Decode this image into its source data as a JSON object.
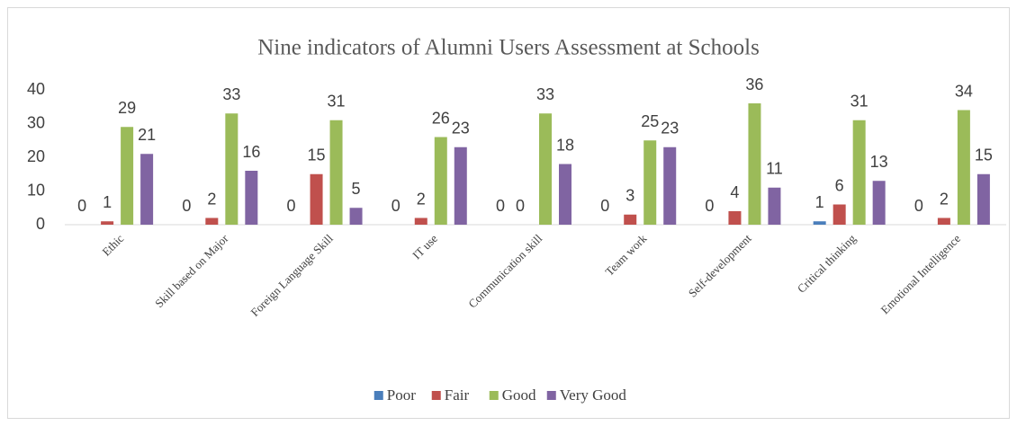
{
  "chart_data": {
    "type": "bar",
    "title": "Nine indicators of Alumni Users Assessment at Schools",
    "categories": [
      "Ethic",
      "Skill based on Major",
      "Foreign Language Skill",
      "IT use",
      "Communication skill",
      "Team work",
      "Self-development",
      "Critical thinking",
      "Emotional Intelligence"
    ],
    "series": [
      {
        "name": "Poor",
        "color": "#4a7ebb",
        "values": [
          0,
          0,
          0,
          0,
          0,
          0,
          0,
          1,
          0
        ]
      },
      {
        "name": "Fair",
        "color": "#c0504d",
        "values": [
          1,
          2,
          15,
          2,
          0,
          3,
          4,
          6,
          2
        ]
      },
      {
        "name": "Good",
        "color": "#9bbb59",
        "values": [
          29,
          33,
          31,
          26,
          33,
          25,
          36,
          31,
          34
        ]
      },
      {
        "name": "Very Good",
        "color": "#8064a2",
        "values": [
          21,
          16,
          5,
          23,
          18,
          23,
          11,
          13,
          15
        ]
      }
    ],
    "ylim": [
      0,
      40
    ],
    "yticks": [
      0,
      10,
      20,
      30,
      40
    ],
    "grid": false,
    "legend": "bottom"
  }
}
